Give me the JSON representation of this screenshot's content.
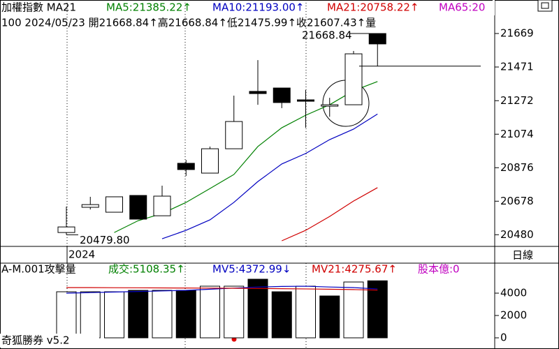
{
  "header": {
    "title": "加權指數 MA21",
    "ma5": "MA5:21385.22↑",
    "ma10": "MA10:21193.00↑",
    "ma21": "MA21:20758.22↑",
    "ma65": "MA65:20",
    "quote": "100 2024/05/23 開21668.84↑高21668.84↑低21475.99↑收21607.43↑量",
    "period": "日線",
    "year": "2024",
    "volume_title": "A-M.001攻擊量",
    "volume_now": "成交:5108.35↑",
    "mv5": "MV5:4372.99↓",
    "mv21": "MV21:4275.67↑",
    "capital": "股本億:0",
    "footer": "奇狐勝券 v5.2"
  },
  "chart_data": [
    {
      "type": "candlestick",
      "open": [
        20493,
        20642,
        20613,
        20712,
        20592,
        20902,
        20844,
        20988,
        21327,
        21347,
        21277,
        21240,
        21248,
        21668.84
      ],
      "high": [
        20646,
        20704,
        20704,
        20712,
        20770,
        20922,
        21001,
        21302,
        21512,
        21347,
        21335,
        21289,
        21566,
        21668.84
      ],
      "low": [
        20479.8,
        20629,
        20613,
        20572,
        20592,
        20827,
        20844,
        20988,
        21248,
        21228,
        21112,
        21177,
        21248,
        21475.99
      ],
      "close": [
        20526,
        20658,
        20704,
        20572,
        20708,
        20865,
        20988,
        21149,
        21314,
        21261,
        21269,
        21248,
        21549,
        21607.43
      ],
      "series": [
        {
          "name": "MA5",
          "color": "#008000",
          "values": [
            null,
            null,
            20493,
            20563,
            20605,
            20671,
            20753,
            20836,
            21001,
            21112,
            21186,
            21248,
            21331,
            21385.22
          ]
        },
        {
          "name": "MA10",
          "color": "#0000c0",
          "values": [
            null,
            null,
            null,
            null,
            20456,
            20506,
            20568,
            20671,
            20794,
            20898,
            20960,
            21042,
            21104,
            21193
          ]
        },
        {
          "name": "MA21",
          "color": "#d00000",
          "values": [
            null,
            null,
            null,
            null,
            null,
            null,
            null,
            null,
            null,
            20444,
            20506,
            20588,
            20679,
            20758.22
          ]
        }
      ],
      "annotations": [
        {
          "text": "21668.84",
          "value": 21668.84
        },
        {
          "text": "20479.80",
          "value": 20479.8
        }
      ],
      "ylim": [
        20411,
        21867
      ],
      "yticks": [
        20480,
        20678,
        20876,
        21074,
        21272,
        21471,
        21669
      ]
    },
    {
      "type": "volume",
      "values": [
        4125,
        4125,
        4125,
        4250,
        4250,
        4250,
        4625,
        4625,
        5250,
        4125,
        4625,
        3750,
        5000,
        5108.35
      ],
      "colors": [
        "white",
        "white",
        "white",
        "black",
        "white",
        "black",
        "white",
        "white",
        "black",
        "black",
        "white",
        "black",
        "white",
        "black"
      ],
      "series": [
        {
          "name": "MV5",
          "color": "#0000c0",
          "values": [
            4000,
            4050,
            4100,
            4150,
            4200,
            4250,
            4350,
            4450,
            4550,
            4600,
            4620,
            4550,
            4500,
            4372.99
          ]
        },
        {
          "name": "MV21",
          "color": "#d00000",
          "values": [
            4500,
            4500,
            4490,
            4480,
            4470,
            4460,
            4450,
            4440,
            4420,
            4400,
            4380,
            4350,
            4320,
            4275.67
          ]
        }
      ],
      "ylim": [
        -1000,
        6688
      ],
      "yticks": [
        0,
        2000,
        4000
      ]
    }
  ]
}
